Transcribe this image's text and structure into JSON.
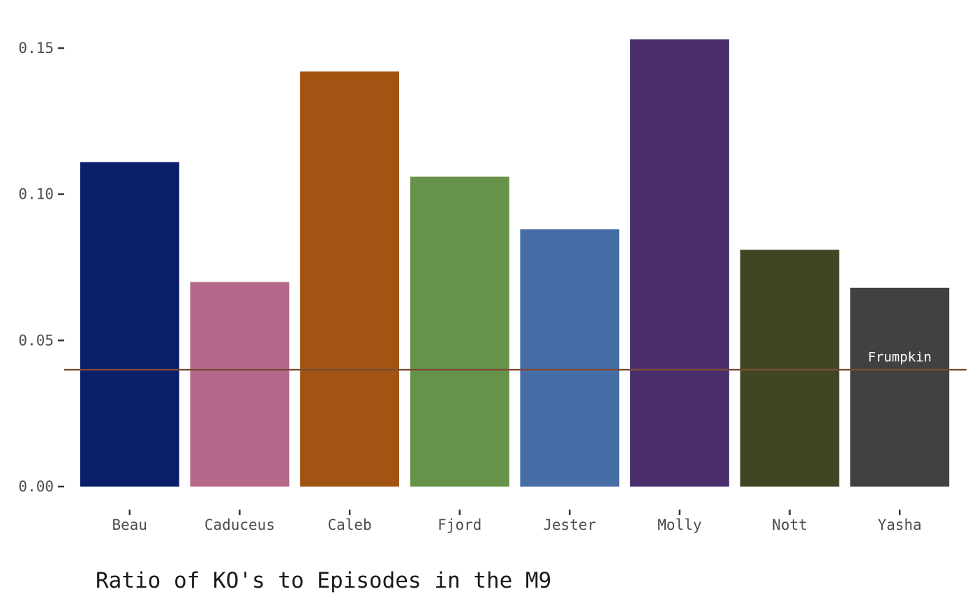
{
  "chart_data": {
    "type": "bar",
    "title": "Ratio of KO's to Episodes in the M9",
    "xlabel": "",
    "ylabel": "",
    "categories": [
      "Beau",
      "Caduceus",
      "Caleb",
      "Fjord",
      "Jester",
      "Molly",
      "Nott",
      "Yasha"
    ],
    "values": [
      0.111,
      0.07,
      0.142,
      0.106,
      0.088,
      0.153,
      0.081,
      0.068
    ],
    "colors": [
      "#0b1e6a",
      "#b5688a",
      "#a25512",
      "#67924a",
      "#476da7",
      "#4a2e6b",
      "#404624",
      "#414142"
    ],
    "ylim": [
      0,
      0.155
    ],
    "yticks": [
      0.0,
      0.05,
      0.1,
      0.15
    ],
    "ytick_labels": [
      "0.00",
      "0.05",
      "0.10",
      "0.15"
    ],
    "grid": false,
    "reference_line": {
      "value": 0.04,
      "label": "Frumpkin",
      "color": "#7b4a34"
    }
  }
}
